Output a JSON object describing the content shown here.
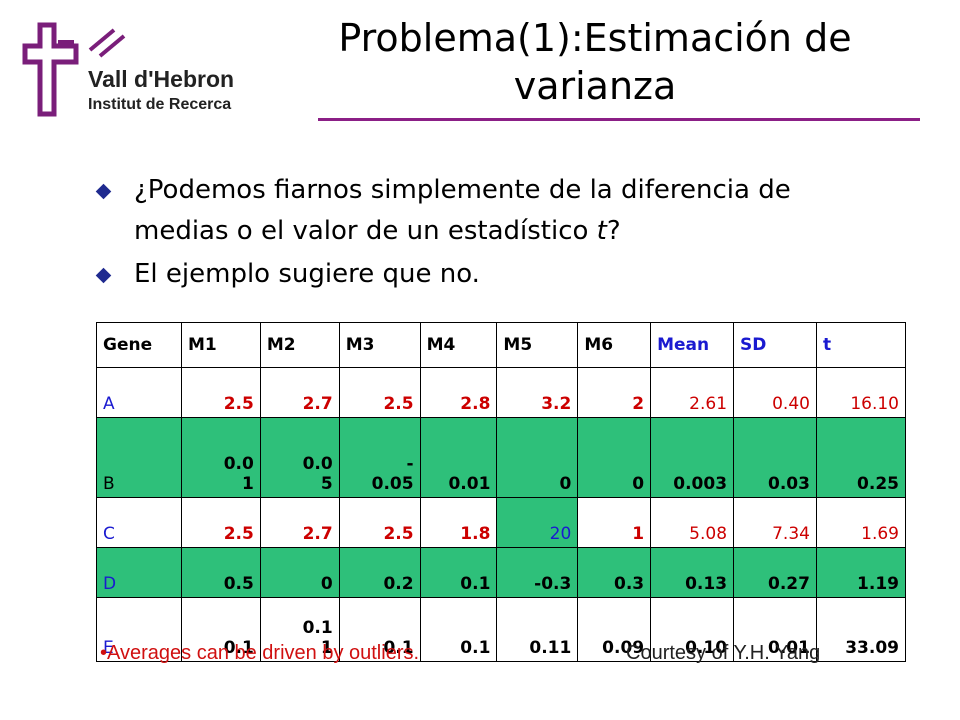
{
  "logo": {
    "name": "Vall d'Hebron",
    "subtitle": "Institut de Recerca"
  },
  "title": {
    "line1": "Problema(1):Estimación de",
    "line2": "varianza"
  },
  "bullets": [
    {
      "text_before": "¿Podemos fiarnos simplemente de la diferencia de medias o el valor de un estadístico ",
      "italic": "t",
      "text_after": "?"
    },
    {
      "text": "El ejemplo sugiere que no."
    }
  ],
  "table": {
    "headers": [
      "Gene",
      "M1",
      "M2",
      "M3",
      "M4",
      "M5",
      "M6",
      "Mean",
      "SD",
      "t"
    ],
    "rows": [
      {
        "gene": "A",
        "m1": "2.5",
        "m2": "2.7",
        "m3": "2.5",
        "m4": "2.8",
        "m5": "3.2",
        "m6": "2",
        "mean": "2.61",
        "sd": "0.40",
        "t": "16.10"
      },
      {
        "gene": "B",
        "m1": "0.0\n1",
        "m2": "0.0\n5",
        "m3": "-\n0.05",
        "m4": "0.01",
        "m5": "0",
        "m6": "0",
        "mean": "0.003",
        "sd": "0.03",
        "t": "0.25"
      },
      {
        "gene": "C",
        "m1": "2.5",
        "m2": "2.7",
        "m3": "2.5",
        "m4": "1.8",
        "m5": "20",
        "m6": "1",
        "mean": "5.08",
        "sd": "7.34",
        "t": "1.69"
      },
      {
        "gene": "D",
        "m1": "0.5",
        "m2": "0",
        "m3": "0.2",
        "m4": "0.1",
        "m5": "-0.3",
        "m6": "0.3",
        "mean": "0.13",
        "sd": "0.27",
        "t": "1.19"
      },
      {
        "gene": "E",
        "m1": "0.1",
        "m2": "0.1\n1",
        "m3": "0.1",
        "m4": "0.1",
        "m5": "0.11",
        "m6": "0.09",
        "mean": "0.10",
        "sd": "0.01",
        "t": "33.09"
      }
    ]
  },
  "footnote": "•Averages can be driven by outliers.",
  "credit": "Courtesy of Y.H. Yang",
  "colors": {
    "accent_rule": "#8b1f86",
    "table_highlight": "#2ec07a",
    "bullet": "#1f2a8f",
    "note_red": "#d01010",
    "gene_blue": "#1a1ad0"
  }
}
